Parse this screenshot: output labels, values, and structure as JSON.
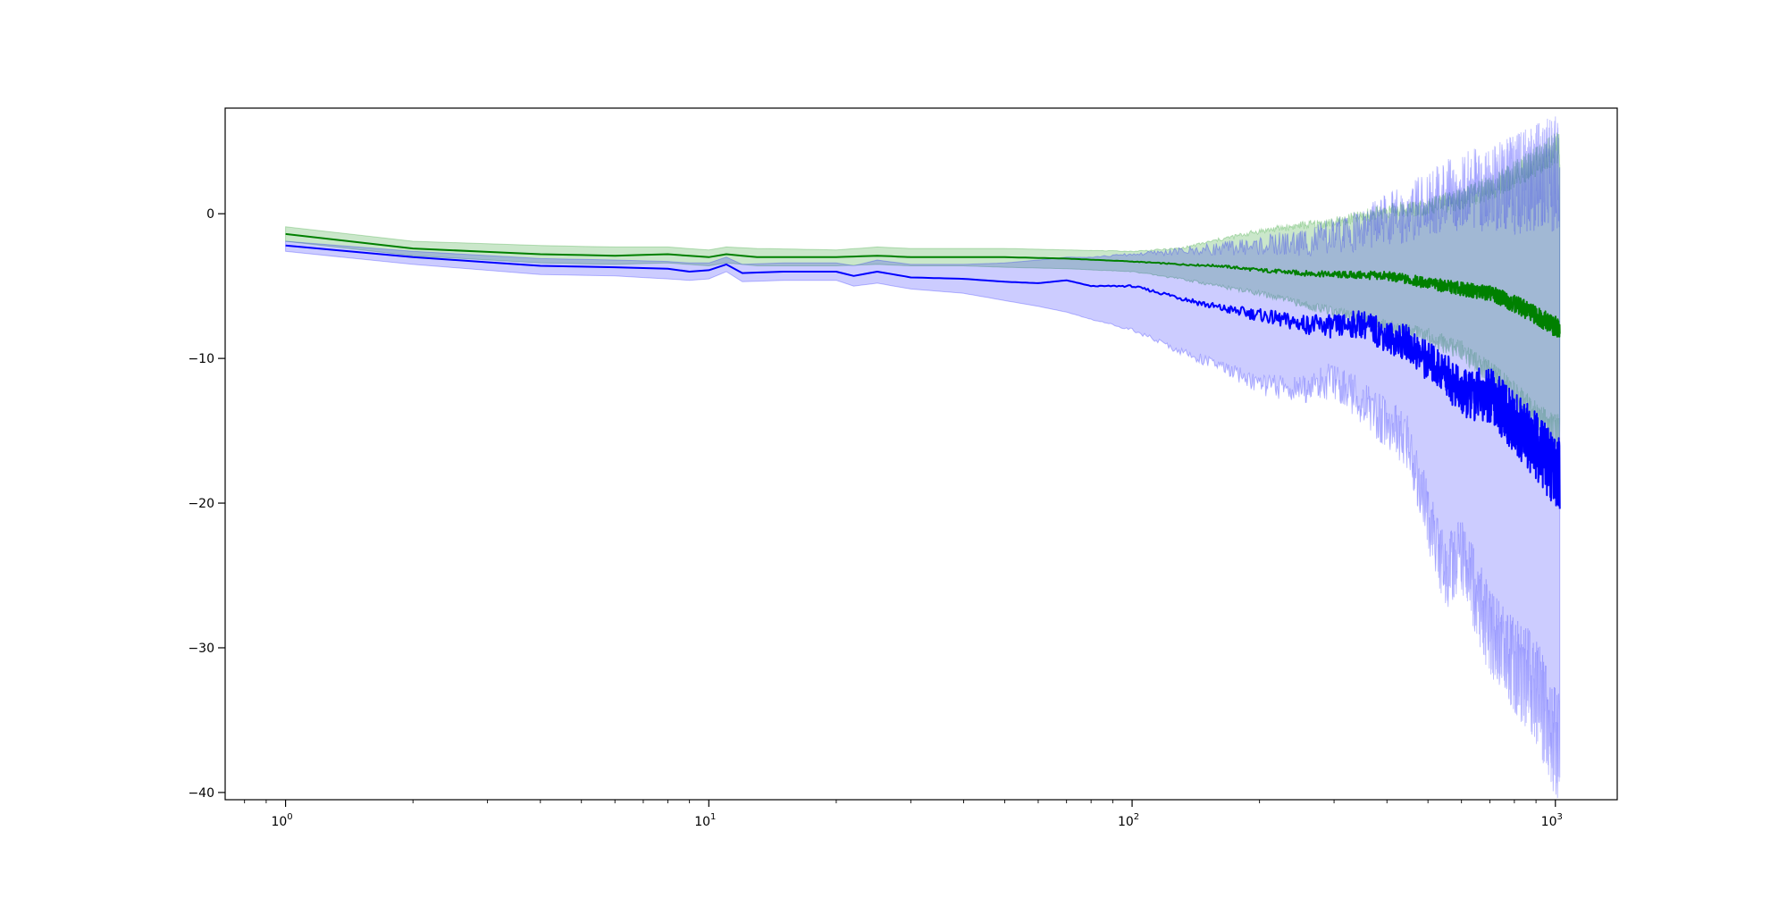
{
  "chart_data": {
    "type": "line",
    "title": "",
    "xlabel": "",
    "ylabel": "",
    "x_scale": "log",
    "xlim": [
      0.72,
      1400
    ],
    "ylim": [
      -40.5,
      7.3
    ],
    "grid": false,
    "legend": null,
    "x_ticks": [
      {
        "value": 1,
        "label": "10",
        "exp": "0"
      },
      {
        "value": 10,
        "label": "10",
        "exp": "1"
      },
      {
        "value": 100,
        "label": "10",
        "exp": "2"
      },
      {
        "value": 1000,
        "label": "10",
        "exp": "3"
      }
    ],
    "y_ticks": [
      {
        "value": 0,
        "label": "0"
      },
      {
        "value": -10,
        "label": "−10"
      },
      {
        "value": -20,
        "label": "−20"
      },
      {
        "value": -30,
        "label": "−30"
      },
      {
        "value": -40,
        "label": "−40"
      }
    ],
    "series": [
      {
        "color": "#008000",
        "band_color": "#2ca02c",
        "band_opacity": 0.25,
        "x": [
          1,
          2,
          4,
          6,
          8,
          10,
          11,
          13,
          20,
          25,
          30,
          40,
          50,
          70,
          100,
          130,
          160,
          200,
          250,
          300,
          400,
          500,
          600,
          700,
          800,
          900,
          1000
        ],
        "y": [
          -1.4,
          -2.4,
          -2.8,
          -2.9,
          -2.8,
          -3.0,
          -2.8,
          -3.0,
          -3.0,
          -2.9,
          -3.0,
          -3.0,
          -3.0,
          -3.1,
          -3.3,
          -3.5,
          -3.6,
          -3.9,
          -4.1,
          -4.2,
          -4.3,
          -4.8,
          -5.2,
          -5.5,
          -6.2,
          -7.0,
          -7.8
        ],
        "upper": [
          -0.9,
          -1.9,
          -2.2,
          -2.3,
          -2.3,
          -2.5,
          -2.3,
          -2.4,
          -2.5,
          -2.3,
          -2.4,
          -2.4,
          -2.4,
          -2.5,
          -2.6,
          -2.4,
          -1.8,
          -1.2,
          -0.8,
          -0.6,
          0.2,
          0.5,
          1.0,
          1.8,
          2.7,
          3.6,
          4.5
        ],
        "lower": [
          -1.9,
          -2.9,
          -3.4,
          -3.5,
          -3.4,
          -3.6,
          -3.4,
          -3.6,
          -3.6,
          -3.5,
          -3.6,
          -3.6,
          -3.7,
          -3.8,
          -4.0,
          -4.5,
          -5.0,
          -5.5,
          -6.2,
          -6.8,
          -7.8,
          -8.5,
          -9.5,
          -11.0,
          -12.5,
          -14.0,
          -15.0
        ]
      },
      {
        "color": "#0000ff",
        "band_color": "#0000ff",
        "band_opacity": 0.2,
        "x": [
          1,
          2,
          4,
          6,
          8,
          9,
          10,
          11,
          12,
          15,
          20,
          22,
          25,
          30,
          40,
          50,
          60,
          70,
          80,
          100,
          130,
          160,
          200,
          250,
          300,
          350,
          400,
          450,
          500,
          550,
          600,
          700,
          800,
          900,
          1000
        ],
        "y": [
          -2.2,
          -3.0,
          -3.6,
          -3.7,
          -3.8,
          -4.0,
          -3.9,
          -3.5,
          -4.1,
          -4.0,
          -4.0,
          -4.3,
          -4.0,
          -4.4,
          -4.5,
          -4.7,
          -4.8,
          -4.6,
          -5.0,
          -5.0,
          -5.8,
          -6.5,
          -7.0,
          -7.6,
          -7.8,
          -7.6,
          -8.5,
          -9.0,
          -10.2,
          -11.0,
          -12.5,
          -12.5,
          -14.5,
          -16.0,
          -18.0
        ],
        "upper": [
          -1.9,
          -2.6,
          -3.1,
          -3.2,
          -3.3,
          -3.4,
          -3.4,
          -3.0,
          -3.5,
          -3.4,
          -3.4,
          -3.6,
          -3.2,
          -3.5,
          -3.5,
          -3.4,
          -3.2,
          -3.0,
          -3.0,
          -2.8,
          -2.6,
          -2.4,
          -2.2,
          -2.0,
          -1.6,
          -1.0,
          -0.4,
          0.0,
          0.8,
          1.2,
          1.5,
          1.8,
          2.0,
          2.5,
          2.8
        ],
        "lower": [
          -2.6,
          -3.5,
          -4.2,
          -4.3,
          -4.5,
          -4.6,
          -4.5,
          -4.0,
          -4.7,
          -4.6,
          -4.6,
          -5.0,
          -4.8,
          -5.2,
          -5.5,
          -6.0,
          -6.4,
          -6.8,
          -7.3,
          -8.0,
          -9.5,
          -10.5,
          -11.8,
          -12.2,
          -11.5,
          -13.0,
          -14.5,
          -16.0,
          -21.0,
          -25.0,
          -23.5,
          -29.0,
          -31.0,
          -33.0,
          -36.5
        ]
      }
    ]
  }
}
